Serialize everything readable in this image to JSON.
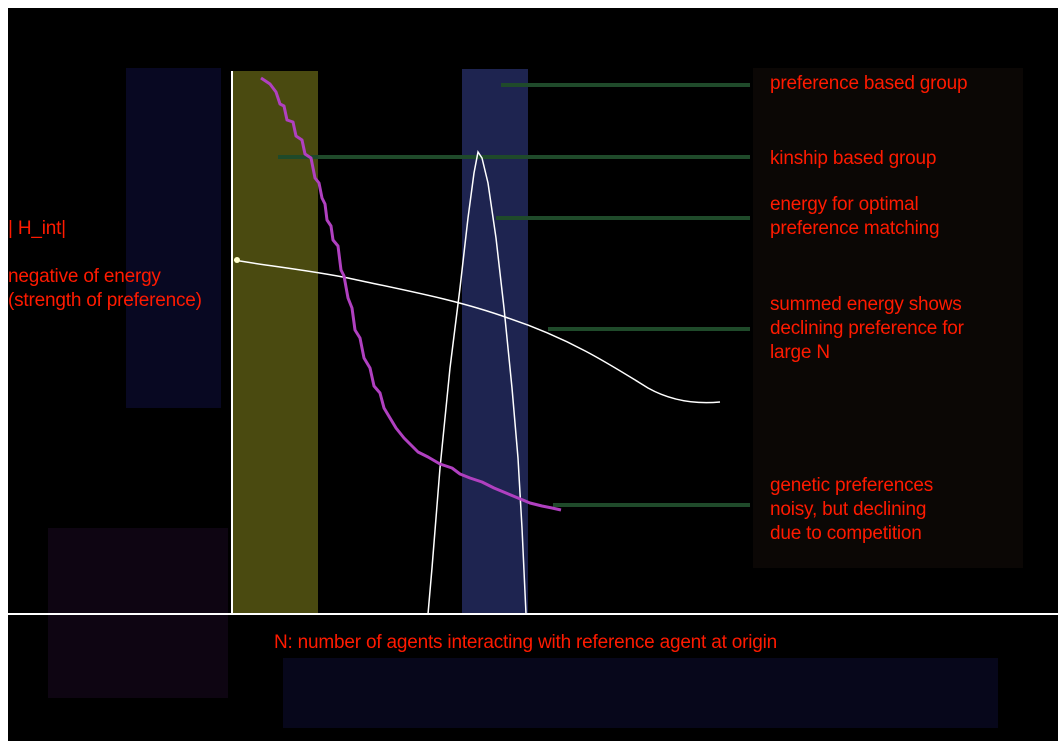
{
  "colors": {
    "background": "#000000",
    "label_red": "#ff1a00",
    "purple_curve": "#b040c0",
    "white_curve": "#ffffff",
    "yellow_band": "#4a4a10",
    "blue_band": "#1e2450",
    "pointer_lines": "#1f4a2a"
  },
  "labels": {
    "y_axis": "| H_int|",
    "y_desc_line1": "negative of energy",
    "y_desc_line2": "(strength of preference)",
    "x_axis": "N: number of agents interacting with reference agent at origin",
    "preference_group": "preference based group",
    "kinship_group": "kinship based group",
    "optimal_line1": "energy for optimal",
    "optimal_line2": "preference matching",
    "summed_line1": "summed energy shows",
    "summed_line2": "declining preference for",
    "summed_line3": "large N",
    "genetic_line1": "genetic preferences",
    "genetic_line2": "noisy, but declining",
    "genetic_line3": "due to competition"
  }
}
